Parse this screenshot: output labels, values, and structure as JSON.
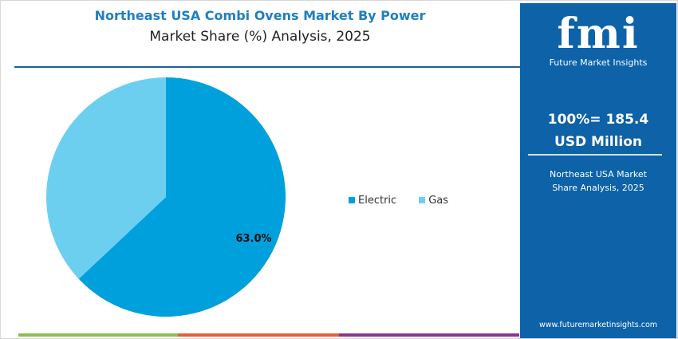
{
  "title": "Northeast USA Combi Ovens Market By Power",
  "subtitle": "Market Share (%) Analysis, 2025",
  "panel": {
    "logo_text": "fmi",
    "logo_sub": "Future Market Insights",
    "total": "100%= 185.4 USD Million",
    "desc": "Northeast USA Market Share Analysis, 2025",
    "url": "www.futuremarketinsights.com",
    "color": "#0d62a8"
  },
  "chart_data": {
    "type": "pie",
    "categories": [
      "Electric",
      "Gas"
    ],
    "values": [
      63.0,
      37.0
    ],
    "colors": [
      "#00a0dc",
      "#6dcff0"
    ],
    "data_labels": [
      "63.0%",
      ""
    ],
    "legend_placement": "right"
  }
}
